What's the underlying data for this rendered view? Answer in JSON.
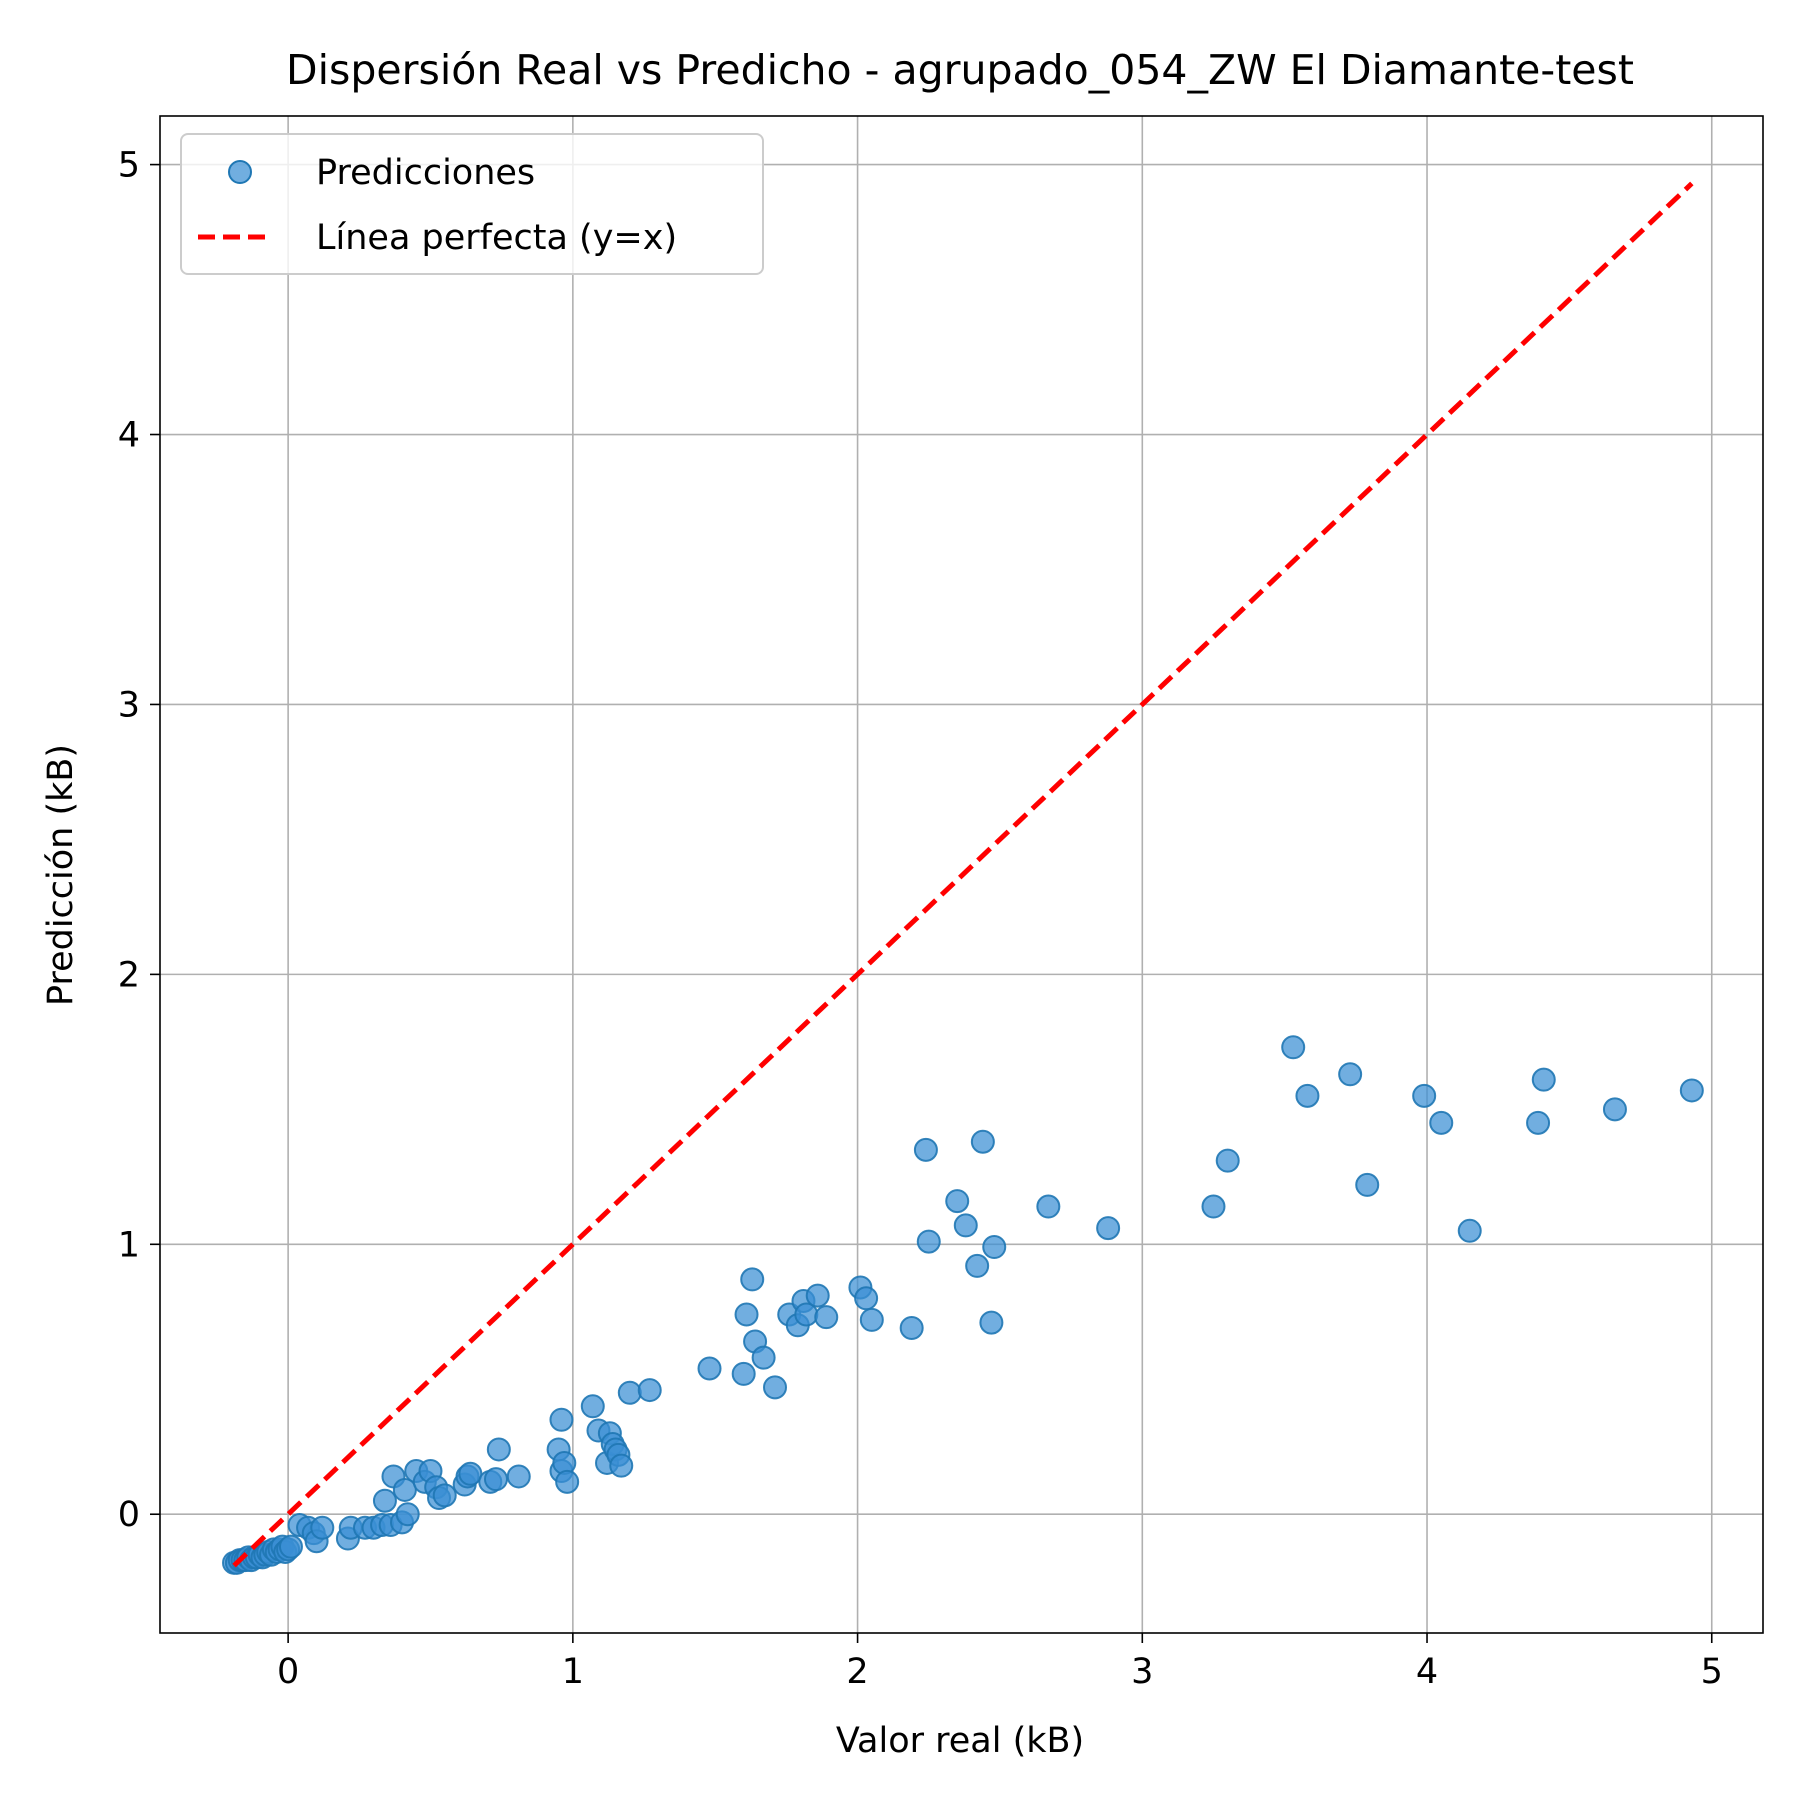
{
  "colors": {
    "scatter": "#1f77b4",
    "scatter_fill": "#3a8fd4",
    "perfect_line": "#ff0000",
    "grid": "#b0b0b0",
    "axes": "#000000"
  },
  "chart_data": {
    "type": "scatter",
    "title": "Dispersión Real vs Predicho - agrupado_054_ZW El Diamante-test",
    "xlabel": "Valor real (kB)",
    "ylabel": "Predicción (kB)",
    "xlim": [
      -0.45,
      5.18
    ],
    "ylim": [
      -0.44,
      5.18
    ],
    "xticks": [
      "0",
      "1",
      "2",
      "3",
      "4",
      "5"
    ],
    "yticks": [
      "0",
      "1",
      "2",
      "3",
      "4",
      "5"
    ],
    "grid": true,
    "legend_position": "upper-left",
    "series": [
      {
        "name": "Predicciones",
        "kind": "scatter",
        "points": [
          [
            -0.19,
            -0.18
          ],
          [
            -0.18,
            -0.18
          ],
          [
            -0.17,
            -0.17
          ],
          [
            -0.16,
            -0.17
          ],
          [
            -0.15,
            -0.17
          ],
          [
            -0.14,
            -0.16
          ],
          [
            -0.13,
            -0.17
          ],
          [
            -0.12,
            -0.16
          ],
          [
            -0.11,
            -0.16
          ],
          [
            -0.1,
            -0.15
          ],
          [
            -0.09,
            -0.16
          ],
          [
            -0.08,
            -0.15
          ],
          [
            -0.07,
            -0.14
          ],
          [
            -0.06,
            -0.15
          ],
          [
            -0.05,
            -0.13
          ],
          [
            -0.04,
            -0.14
          ],
          [
            -0.03,
            -0.13
          ],
          [
            -0.02,
            -0.12
          ],
          [
            -0.01,
            -0.14
          ],
          [
            0.0,
            -0.13
          ],
          [
            0.01,
            -0.12
          ],
          [
            0.04,
            -0.04
          ],
          [
            0.07,
            -0.05
          ],
          [
            0.09,
            -0.07
          ],
          [
            0.1,
            -0.1
          ],
          [
            0.12,
            -0.05
          ],
          [
            0.21,
            -0.09
          ],
          [
            0.22,
            -0.05
          ],
          [
            0.27,
            -0.05
          ],
          [
            0.3,
            -0.05
          ],
          [
            0.33,
            -0.04
          ],
          [
            0.34,
            0.05
          ],
          [
            0.36,
            -0.04
          ],
          [
            0.37,
            0.14
          ],
          [
            0.4,
            -0.03
          ],
          [
            0.41,
            0.09
          ],
          [
            0.42,
            0.0
          ],
          [
            0.45,
            0.16
          ],
          [
            0.48,
            0.12
          ],
          [
            0.5,
            0.16
          ],
          [
            0.52,
            0.1
          ],
          [
            0.53,
            0.06
          ],
          [
            0.55,
            0.07
          ],
          [
            0.62,
            0.11
          ],
          [
            0.63,
            0.14
          ],
          [
            0.64,
            0.15
          ],
          [
            0.71,
            0.12
          ],
          [
            0.73,
            0.13
          ],
          [
            0.74,
            0.24
          ],
          [
            0.81,
            0.14
          ],
          [
            0.95,
            0.24
          ],
          [
            0.96,
            0.35
          ],
          [
            0.96,
            0.16
          ],
          [
            0.97,
            0.19
          ],
          [
            0.98,
            0.12
          ],
          [
            1.07,
            0.4
          ],
          [
            1.09,
            0.31
          ],
          [
            1.12,
            0.19
          ],
          [
            1.13,
            0.3
          ],
          [
            1.14,
            0.26
          ],
          [
            1.15,
            0.24
          ],
          [
            1.16,
            0.22
          ],
          [
            1.17,
            0.18
          ],
          [
            1.2,
            0.45
          ],
          [
            1.27,
            0.46
          ],
          [
            1.48,
            0.54
          ],
          [
            1.6,
            0.52
          ],
          [
            1.61,
            0.74
          ],
          [
            1.63,
            0.87
          ],
          [
            1.64,
            0.64
          ],
          [
            1.67,
            0.58
          ],
          [
            1.71,
            0.47
          ],
          [
            1.76,
            0.74
          ],
          [
            1.79,
            0.7
          ],
          [
            1.81,
            0.79
          ],
          [
            1.82,
            0.74
          ],
          [
            1.86,
            0.81
          ],
          [
            1.89,
            0.73
          ],
          [
            2.01,
            0.84
          ],
          [
            2.03,
            0.8
          ],
          [
            2.05,
            0.72
          ],
          [
            2.19,
            0.69
          ],
          [
            2.24,
            1.35
          ],
          [
            2.25,
            1.01
          ],
          [
            2.35,
            1.16
          ],
          [
            2.38,
            1.07
          ],
          [
            2.42,
            0.92
          ],
          [
            2.44,
            1.38
          ],
          [
            2.47,
            0.71
          ],
          [
            2.48,
            0.99
          ],
          [
            2.67,
            1.14
          ],
          [
            2.88,
            1.06
          ],
          [
            3.25,
            1.14
          ],
          [
            3.3,
            1.31
          ],
          [
            3.53,
            1.73
          ],
          [
            3.58,
            1.55
          ],
          [
            3.73,
            1.63
          ],
          [
            3.79,
            1.22
          ],
          [
            3.99,
            1.55
          ],
          [
            4.05,
            1.45
          ],
          [
            4.15,
            1.05
          ],
          [
            4.39,
            1.45
          ],
          [
            4.41,
            1.61
          ],
          [
            4.66,
            1.5
          ],
          [
            4.93,
            1.57
          ]
        ]
      },
      {
        "name": "Línea perfecta (y=x)",
        "kind": "line",
        "x": [
          -0.19,
          4.93
        ],
        "y": [
          -0.19,
          4.93
        ]
      }
    ]
  }
}
